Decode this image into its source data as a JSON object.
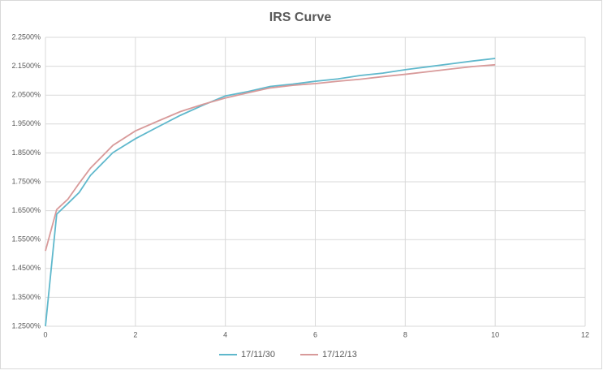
{
  "chart_data": {
    "type": "line",
    "title": "IRS Curve",
    "x": [
      0,
      0.25,
      0.5,
      0.75,
      1,
      1.5,
      2,
      2.5,
      3,
      3.5,
      4,
      4.5,
      5,
      5.5,
      6,
      6.5,
      7,
      7.5,
      8,
      8.5,
      9,
      9.5,
      10
    ],
    "series": [
      {
        "name": "17/11/30",
        "color": "#5fb8cc",
        "values": [
          1.25,
          1.638,
          1.675,
          1.713,
          1.772,
          1.851,
          1.899,
          1.94,
          1.98,
          2.015,
          2.047,
          2.062,
          2.08,
          2.088,
          2.098,
          2.106,
          2.118,
          2.126,
          2.138,
          2.148,
          2.158,
          2.168,
          2.177
        ]
      },
      {
        "name": "17/12/13",
        "color": "#d89a9a",
        "values": [
          1.511,
          1.654,
          1.69,
          1.745,
          1.797,
          1.876,
          1.926,
          1.96,
          1.993,
          2.018,
          2.04,
          2.058,
          2.075,
          2.084,
          2.09,
          2.098,
          2.105,
          2.114,
          2.122,
          2.131,
          2.14,
          2.149,
          2.155
        ]
      }
    ],
    "xlim": [
      0,
      12
    ],
    "xticks": [
      0,
      2,
      4,
      6,
      8,
      10,
      12
    ],
    "ylim": [
      1.25,
      2.25
    ],
    "yticks": [
      {
        "value": 1.25,
        "label": "1.2500%"
      },
      {
        "value": 1.35,
        "label": "1.3500%"
      },
      {
        "value": 1.45,
        "label": "1.4500%"
      },
      {
        "value": 1.55,
        "label": "1.5500%"
      },
      {
        "value": 1.65,
        "label": "1.6500%"
      },
      {
        "value": 1.75,
        "label": "1.7500%"
      },
      {
        "value": 1.85,
        "label": "1.8500%"
      },
      {
        "value": 1.95,
        "label": "1.9500%"
      },
      {
        "value": 2.05,
        "label": "2.0500%"
      },
      {
        "value": 2.15,
        "label": "2.1500%"
      },
      {
        "value": 2.25,
        "label": "2.2500%"
      }
    ],
    "grid": true,
    "legend": "bottom"
  }
}
